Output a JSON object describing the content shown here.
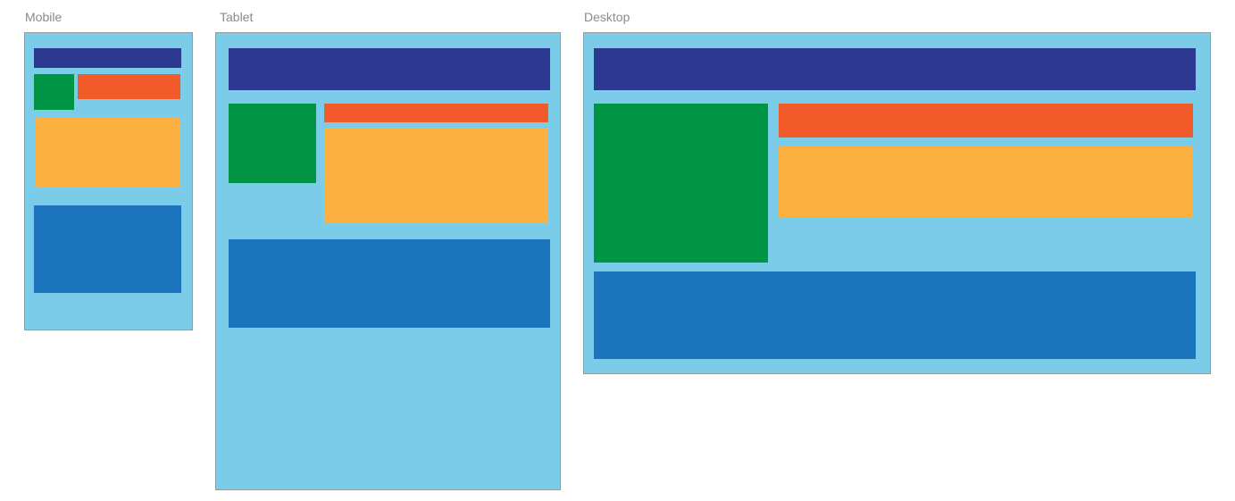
{
  "frames": [
    {
      "label": "Mobile"
    },
    {
      "label": "Tablet"
    },
    {
      "label": "Desktop"
    }
  ]
}
